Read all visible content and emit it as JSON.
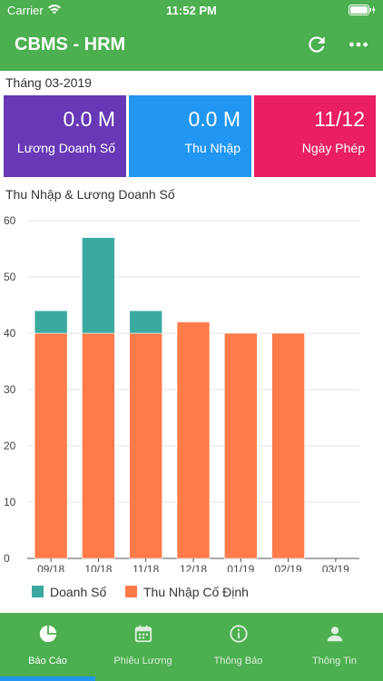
{
  "status_bar": {
    "carrier": "Carrier",
    "time": "11:52 PM"
  },
  "app_bar": {
    "title": "CBMS - HRM",
    "refresh_icon": "refresh-icon",
    "more_icon": "more-icon"
  },
  "month_label": "Tháng 03-2019",
  "cards": {
    "sales": {
      "value": "0.0 M",
      "label": "Lương Doanh Số",
      "color": "#6739b6"
    },
    "income": {
      "value": "0.0 M",
      "label": "Thu Nhập",
      "color": "#2196f3"
    },
    "leave": {
      "value": "11/12",
      "label": "Ngày Phép",
      "color": "#e91e63"
    }
  },
  "chart_title": "Thu Nhập & Lương Doanh Số",
  "chart_data": {
    "type": "bar",
    "stacked": true,
    "categories": [
      "09/18",
      "10/18",
      "11/18",
      "12/18",
      "01/19",
      "02/19",
      "03/19"
    ],
    "series": [
      {
        "name": "Thu Nhập Cố Định",
        "color": "#ff7b4a",
        "values": [
          40,
          40,
          40,
          42,
          40,
          40,
          0
        ]
      },
      {
        "name": "Doanh Số",
        "color": "#3aaaa0",
        "values": [
          4,
          17,
          4,
          0,
          0,
          0,
          0
        ]
      }
    ],
    "yticks": [
      "0",
      "10",
      "20",
      "30",
      "40",
      "50",
      "60"
    ],
    "ylim": [
      0,
      60
    ],
    "grid": true,
    "legend_position": "bottom-left"
  },
  "legend": {
    "items": [
      {
        "name": "Doanh Số",
        "color": "#3aaaa0"
      },
      {
        "name": "Thu Nhập Cố Định",
        "color": "#ff7b4a"
      }
    ]
  },
  "bottom_nav": {
    "items": [
      {
        "label": "Báo Cáo",
        "icon": "pie-chart-icon",
        "active": true
      },
      {
        "label": "Phiếu Lương",
        "icon": "calendar-icon",
        "active": false
      },
      {
        "label": "Thông Báo",
        "icon": "info-icon",
        "active": false
      },
      {
        "label": "Thông Tin",
        "icon": "person-icon",
        "active": false
      }
    ]
  }
}
